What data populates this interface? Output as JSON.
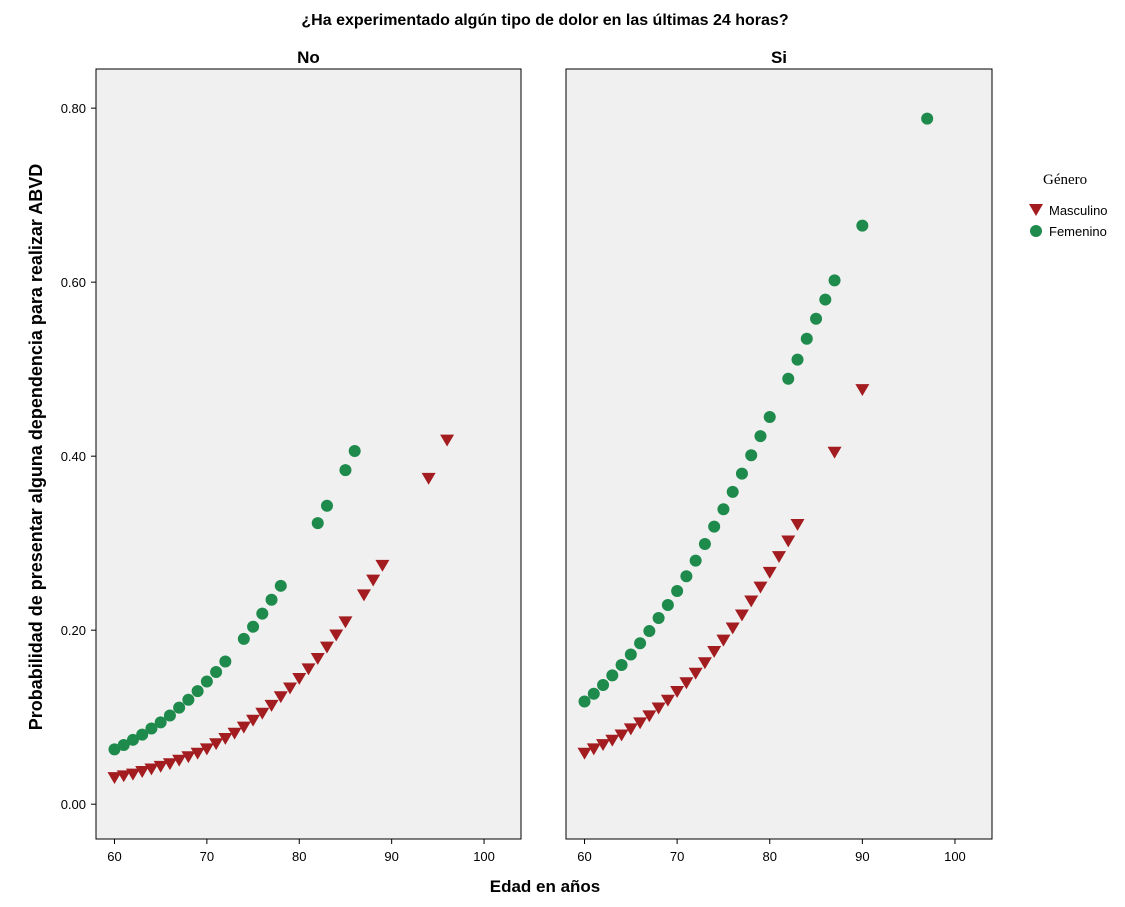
{
  "chart_data": {
    "type": "scatter",
    "title": "¿Ha experimentado algún tipo de dolor en las últimas 24 horas?",
    "xlabel": "Edad en años",
    "ylabel": "Probabilidad de presentar alguna dependencia para realizar ABVD",
    "xlim": [
      58,
      104
    ],
    "ylim": [
      -0.04,
      0.845
    ],
    "x_ticks": [
      60,
      70,
      80,
      90,
      100
    ],
    "y_ticks": [
      "0.00",
      "0.20",
      "0.40",
      "0.60",
      "0.80"
    ],
    "grid": false,
    "legend_position": "right",
    "legend_title": "Género",
    "colors": {
      "Masculino": "#a31c20",
      "Femenino": "#1e8a4c",
      "panel_bg": "#f0f0f0"
    },
    "panels": [
      {
        "label": "No",
        "series": [
          {
            "name": "Masculino",
            "marker": "triangle-down",
            "x": [
              60,
              61,
              62,
              63,
              64,
              65,
              66,
              67,
              68,
              69,
              70,
              71,
              72,
              73,
              74,
              75,
              76,
              77,
              78,
              79,
              80,
              81,
              82,
              83,
              84,
              85,
              87,
              88,
              89,
              94,
              96
            ],
            "y": [
              0.03,
              0.032,
              0.034,
              0.037,
              0.04,
              0.043,
              0.046,
              0.05,
              0.054,
              0.058,
              0.063,
              0.069,
              0.075,
              0.081,
              0.088,
              0.096,
              0.104,
              0.113,
              0.123,
              0.133,
              0.144,
              0.155,
              0.167,
              0.18,
              0.194,
              0.209,
              0.24,
              0.257,
              0.274,
              0.374,
              0.418
            ]
          },
          {
            "name": "Femenino",
            "marker": "circle",
            "x": [
              60,
              61,
              62,
              63,
              64,
              65,
              66,
              67,
              68,
              69,
              70,
              71,
              72,
              74,
              75,
              76,
              77,
              78,
              82,
              83,
              85,
              86
            ],
            "y": [
              0.063,
              0.068,
              0.074,
              0.08,
              0.087,
              0.094,
              0.102,
              0.111,
              0.12,
              0.13,
              0.141,
              0.152,
              0.164,
              0.19,
              0.204,
              0.219,
              0.235,
              0.251,
              0.323,
              0.343,
              0.384,
              0.406
            ]
          }
        ]
      },
      {
        "label": "Si",
        "series": [
          {
            "name": "Masculino",
            "marker": "triangle-down",
            "x": [
              60,
              61,
              62,
              63,
              64,
              65,
              66,
              67,
              68,
              69,
              70,
              71,
              72,
              73,
              74,
              75,
              76,
              77,
              78,
              79,
              80,
              81,
              82,
              83,
              87,
              90
            ],
            "y": [
              0.058,
              0.063,
              0.068,
              0.073,
              0.079,
              0.086,
              0.093,
              0.101,
              0.11,
              0.119,
              0.129,
              0.139,
              0.15,
              0.162,
              0.175,
              0.188,
              0.202,
              0.217,
              0.233,
              0.249,
              0.266,
              0.284,
              0.302,
              0.321,
              0.404,
              0.476
            ]
          },
          {
            "name": "Femenino",
            "marker": "circle",
            "x": [
              60,
              61,
              62,
              63,
              64,
              65,
              66,
              67,
              68,
              69,
              70,
              71,
              72,
              73,
              74,
              75,
              76,
              77,
              78,
              79,
              80,
              82,
              83,
              84,
              85,
              86,
              87,
              90,
              97
            ],
            "y": [
              0.118,
              0.127,
              0.137,
              0.148,
              0.16,
              0.172,
              0.185,
              0.199,
              0.214,
              0.229,
              0.245,
              0.262,
              0.28,
              0.299,
              0.319,
              0.339,
              0.359,
              0.38,
              0.401,
              0.423,
              0.445,
              0.489,
              0.511,
              0.535,
              0.558,
              0.58,
              0.602,
              0.665,
              0.788
            ]
          }
        ]
      }
    ]
  }
}
